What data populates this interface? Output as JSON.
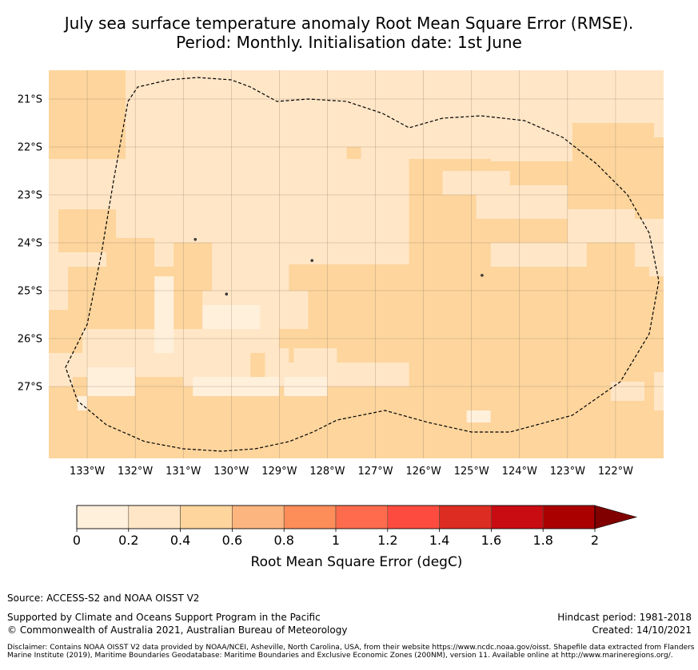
{
  "title": {
    "line1": "July sea surface temperature anomaly Root Mean Square Error (RMSE).",
    "line2": "Period: Monthly. Initialisation date: 1st June"
  },
  "map": {
    "lon_range": [
      -133.8,
      -121.0
    ],
    "lat_range": [
      -28.5,
      -20.4
    ],
    "lon_ticks": [
      {
        "value": -133,
        "label": "133°W"
      },
      {
        "value": -132,
        "label": "132°W"
      },
      {
        "value": -131,
        "label": "131°W"
      },
      {
        "value": -130,
        "label": "130°W"
      },
      {
        "value": -129,
        "label": "129°W"
      },
      {
        "value": -128,
        "label": "128°W"
      },
      {
        "value": -127,
        "label": "127°W"
      },
      {
        "value": -126,
        "label": "126°W"
      },
      {
        "value": -125,
        "label": "125°W"
      },
      {
        "value": -124,
        "label": "124°W"
      },
      {
        "value": -123,
        "label": "123°W"
      },
      {
        "value": -122,
        "label": "122°W"
      }
    ],
    "lat_ticks": [
      {
        "value": -21,
        "label": "21°S"
      },
      {
        "value": -22,
        "label": "22°S"
      },
      {
        "value": -23,
        "label": "23°S"
      },
      {
        "value": -24,
        "label": "24°S"
      },
      {
        "value": -25,
        "label": "25°S"
      },
      {
        "value": -26,
        "label": "26°S"
      },
      {
        "value": -27,
        "label": "27°S"
      }
    ],
    "background_class_color": "#ffe6c7",
    "patch_class_color": "#fdd59d",
    "light_class_color": "#fff0dc",
    "patches_0_4_to_0_6": [
      {
        "lon": [
          -133.8,
          -132.2
        ],
        "lat": [
          -22.25,
          -20.4
        ]
      },
      {
        "lon": [
          -133.4,
          -133.0
        ],
        "lat": [
          -20.7,
          -20.4
        ]
      },
      {
        "lon": [
          -132.8,
          -132.4
        ],
        "lat": [
          -20.6,
          -20.4
        ]
      },
      {
        "lon": [
          -133.6,
          -132.4
        ],
        "lat": [
          -24.2,
          -23.3
        ]
      },
      {
        "lon": [
          -132.6,
          -131.6
        ],
        "lat": [
          -24.5,
          -23.9
        ]
      },
      {
        "lon": [
          -133.8,
          -130.6
        ],
        "lat": [
          -25.8,
          -24.5
        ]
      },
      {
        "lon": [
          -131.2,
          -130.4
        ],
        "lat": [
          -25.0,
          -24.0
        ]
      },
      {
        "lon": [
          -130.6,
          -129.3
        ],
        "lat": [
          -25.8,
          -25.3
        ]
      },
      {
        "lon": [
          -130.1,
          -129.3
        ],
        "lat": [
          -26.8,
          -26.3
        ]
      },
      {
        "lon": [
          -133.8,
          -133.1
        ],
        "lat": [
          -26.3,
          -25.8
        ]
      },
      {
        "lon": [
          -128.8,
          -126.3
        ],
        "lat": [
          -26.5,
          -24.45
        ]
      },
      {
        "lon": [
          -129.0,
          -128.2
        ],
        "lat": [
          -26.2,
          -25.2
        ]
      },
      {
        "lon": [
          -126.3,
          -121.0
        ],
        "lat": [
          -27.5,
          -22.3
        ]
      },
      {
        "lon": [
          -126.3,
          -125.3
        ],
        "lat": [
          -22.4,
          -22.25
        ]
      },
      {
        "lon": [
          -125.3,
          -124.6
        ],
        "lat": [
          -22.5,
          -22.25
        ]
      },
      {
        "lon": [
          -127.6,
          -127.3
        ],
        "lat": [
          -22.25,
          -22.0
        ]
      },
      {
        "lon": [
          -122.9,
          -121.2
        ],
        "lat": [
          -24.0,
          -21.5
        ]
      },
      {
        "lon": [
          -121.2,
          -121.0
        ],
        "lat": [
          -23.6,
          -21.8
        ]
      },
      {
        "lon": [
          -133.8,
          -121.0
        ],
        "lat": [
          -28.5,
          -27.0
        ]
      },
      {
        "lon": [
          -133.3,
          -131.0
        ],
        "lat": [
          -27.0,
          -26.8
        ]
      },
      {
        "lon": [
          -128.6,
          -128.0
        ],
        "lat": [
          -27.5,
          -26.8
        ]
      }
    ],
    "holes_0_2_to_0_4": [
      {
        "lon": [
          -125.6,
          -124.2
        ],
        "lat": [
          -23.0,
          -22.5
        ]
      },
      {
        "lon": [
          -124.9,
          -123.0
        ],
        "lat": [
          -23.5,
          -22.8
        ]
      },
      {
        "lon": [
          -123.0,
          -121.6
        ],
        "lat": [
          -24.0,
          -23.3
        ]
      },
      {
        "lon": [
          -123.9,
          -123.2
        ],
        "lat": [
          -24.0,
          -24.25
        ]
      },
      {
        "lon": [
          -124.6,
          -122.6
        ],
        "lat": [
          -24.5,
          -24.0
        ]
      },
      {
        "lon": [
          -122.0,
          -121.0
        ],
        "lat": [
          -24.0,
          -23.5
        ]
      },
      {
        "lon": [
          -121.6,
          -121.0
        ],
        "lat": [
          -24.5,
          -24.0
        ]
      },
      {
        "lon": [
          -121.3,
          -121.0
        ],
        "lat": [
          -24.7,
          -24.5
        ]
      },
      {
        "lon": [
          -129.5,
          -128.4
        ],
        "lat": [
          -25.8,
          -25.0
        ]
      },
      {
        "lon": [
          -128.7,
          -127.8
        ],
        "lat": [
          -26.6,
          -26.2
        ]
      },
      {
        "lon": [
          -128.2,
          -127.7
        ],
        "lat": [
          -26.8,
          -26.6
        ]
      },
      {
        "lon": [
          -130.4,
          -129.6
        ],
        "lat": [
          -27.0,
          -26.3
        ]
      },
      {
        "lon": [
          -133.8,
          -133.4
        ],
        "lat": [
          -25.4,
          -24.5
        ]
      },
      {
        "lon": [
          -122.1,
          -121.4
        ],
        "lat": [
          -27.3,
          -26.9
        ]
      },
      {
        "lon": [
          -121.2,
          -121.0
        ],
        "lat": [
          -27.5,
          -26.7
        ]
      },
      {
        "lon": [
          -133.0,
          -132.0
        ],
        "lat": [
          -26.3,
          -25.9
        ]
      }
    ],
    "light_patches_0_to_0_2": [
      {
        "lon": [
          -131.6,
          -131.2
        ],
        "lat": [
          -26.3,
          -24.7
        ]
      },
      {
        "lon": [
          -130.6,
          -129.4
        ],
        "lat": [
          -25.8,
          -25.3
        ]
      },
      {
        "lon": [
          -133.0,
          -132.0
        ],
        "lat": [
          -27.2,
          -26.6
        ]
      },
      {
        "lon": [
          -130.8,
          -129.0
        ],
        "lat": [
          -27.2,
          -26.8
        ]
      },
      {
        "lon": [
          -125.1,
          -124.6
        ],
        "lat": [
          -27.75,
          -27.5
        ]
      },
      {
        "lon": [
          -133.2,
          -133.0
        ],
        "lat": [
          -27.5,
          -27.2
        ]
      },
      {
        "lon": [
          -128.9,
          -128.0
        ],
        "lat": [
          -27.2,
          -26.8
        ]
      }
    ],
    "zone_boundary": [
      [
        -132.15,
        -21.05
      ],
      [
        -131.95,
        -20.75
      ],
      [
        -131.3,
        -20.6
      ],
      [
        -130.7,
        -20.55
      ],
      [
        -130.0,
        -20.6
      ],
      [
        -129.6,
        -20.75
      ],
      [
        -129.05,
        -21.05
      ],
      [
        -128.4,
        -21.0
      ],
      [
        -127.6,
        -21.05
      ],
      [
        -126.85,
        -21.3
      ],
      [
        -126.3,
        -21.6
      ],
      [
        -125.6,
        -21.4
      ],
      [
        -124.8,
        -21.35
      ],
      [
        -123.9,
        -21.45
      ],
      [
        -123.1,
        -21.8
      ],
      [
        -122.4,
        -22.35
      ],
      [
        -121.75,
        -23.0
      ],
      [
        -121.3,
        -23.8
      ],
      [
        -121.1,
        -24.8
      ],
      [
        -121.3,
        -25.9
      ],
      [
        -121.9,
        -26.9
      ],
      [
        -122.9,
        -27.6
      ],
      [
        -124.2,
        -27.95
      ],
      [
        -125.0,
        -27.95
      ],
      [
        -125.9,
        -27.75
      ],
      [
        -126.8,
        -27.5
      ],
      [
        -127.3,
        -27.6
      ],
      [
        -127.8,
        -27.7
      ],
      [
        -128.3,
        -27.95
      ],
      [
        -128.8,
        -28.15
      ],
      [
        -129.5,
        -28.3
      ],
      [
        -130.2,
        -28.35
      ],
      [
        -131.0,
        -28.3
      ],
      [
        -131.8,
        -28.15
      ],
      [
        -132.6,
        -27.8
      ],
      [
        -133.2,
        -27.3
      ],
      [
        -133.45,
        -26.6
      ],
      [
        -133.0,
        -25.7
      ],
      [
        -132.7,
        -24.2
      ],
      [
        -132.45,
        -22.7
      ],
      [
        -132.15,
        -21.05
      ]
    ],
    "islands": [
      {
        "lon": -128.32,
        "lat": -24.37
      },
      {
        "lon": -124.78,
        "lat": -24.68
      },
      {
        "lon": -130.1,
        "lat": -25.07
      },
      {
        "lon": -130.75,
        "lat": -23.93
      }
    ]
  },
  "colorbar": {
    "colors": [
      "#fff0dc",
      "#ffe6c7",
      "#fdd59d",
      "#fdb57f",
      "#fd8d59",
      "#fe6b4d",
      "#fe4b40",
      "#dd2c22",
      "#c90b12",
      "#ab0000"
    ],
    "extend_color": "#800000",
    "tick_labels": [
      "0",
      "0.2",
      "0.4",
      "0.6",
      "0.8",
      "1",
      "1.2",
      "1.4",
      "1.6",
      "1.8",
      "2"
    ],
    "label": "Root Mean Square Error (degC)"
  },
  "footer": {
    "source": "Source: ACCESS-S2 and NOAA OISST V2",
    "supported": "Supported by Climate and Oceans Support Program in the Pacific",
    "copyright": "© Commonwealth of Australia 2021, Australian Bureau of Meteorology",
    "hindcast": "Hindcast period: 1981-2018",
    "created": "Created: 14/10/2021",
    "disclaimer": "Disclaimer: Contains NOAA OISST V2 data provided by NOAA/NCEI, Asheville, North Carolina, USA, from their website https://www.ncdc.noaa.gov/oisst. Shapefile data extracted from Flanders Marine Institute (2019), Maritime Boundaries Geodatabase: Maritime Boundaries and Exclusive Economic Zones (200NM), version 11. Available online at http://www.marineregions.org/."
  }
}
